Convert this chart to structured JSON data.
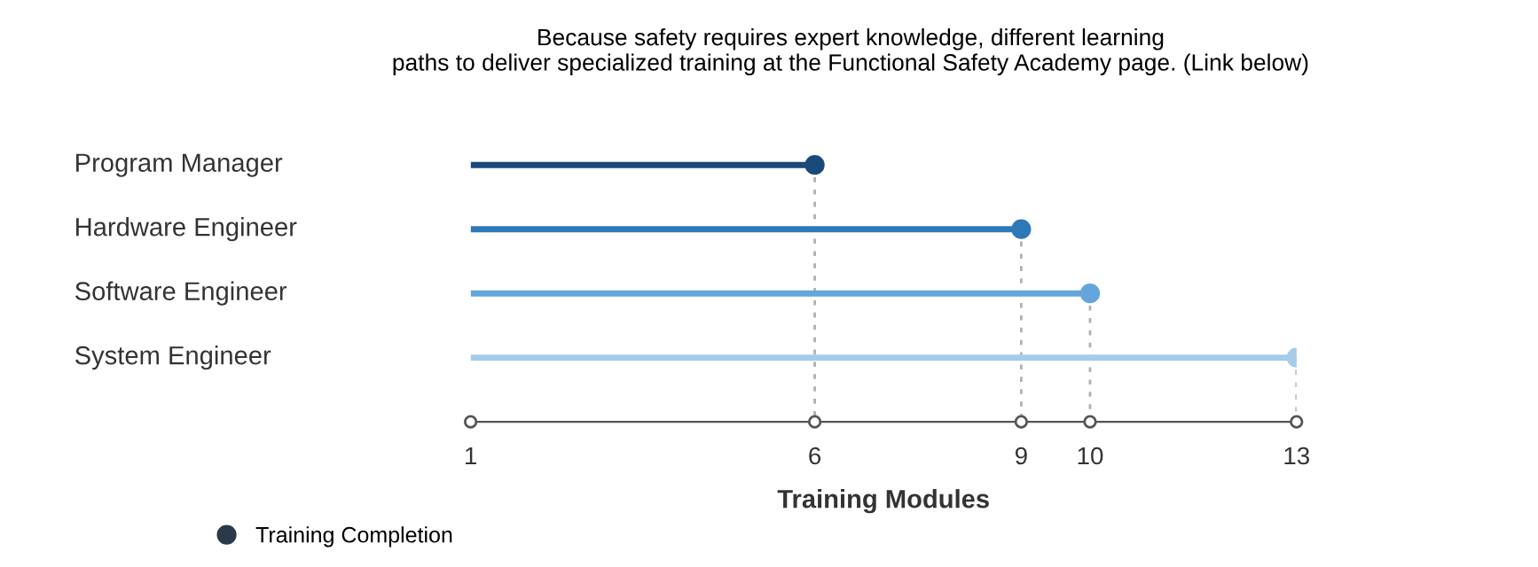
{
  "chart_data": {
    "type": "lollipop",
    "orientation": "horizontal",
    "title": "Because safety requires expert knowledge, different learning\npaths to deliver specialized training at the Functional Safety Academy page. (Link below)",
    "categories": [
      "Program Manager",
      "Hardware Engineer",
      "Software Engineer",
      "System Engineer"
    ],
    "series": [
      {
        "name": "Training Completion",
        "color": "#2b3a4a",
        "colors": [
          "#1a4a7a",
          "#2f78b8",
          "#64a6dc",
          "#a7cbea"
        ],
        "values": [
          6,
          9,
          10,
          13
        ]
      }
    ],
    "xlabel": "Training Modules",
    "xlim": [
      1,
      13
    ],
    "xticks": [
      1,
      6,
      9,
      10,
      13
    ],
    "marker": "circle",
    "grid": false,
    "legend": "bottom left"
  }
}
